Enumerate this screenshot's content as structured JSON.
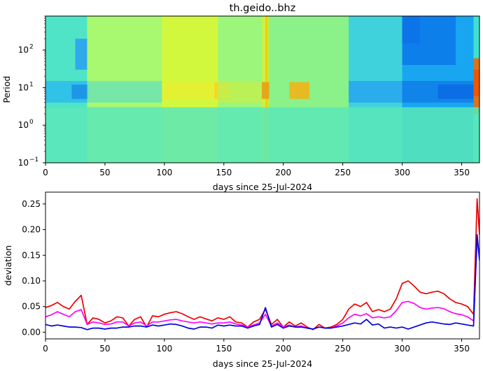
{
  "chart_data": [
    {
      "type": "heatmap",
      "title": "th.geido..bhz",
      "xlabel": "days since 25-Jul-2024",
      "ylabel": "Period",
      "xlim": [
        0,
        365
      ],
      "ylim": [
        0.1,
        800
      ],
      "yscale": "log",
      "colormap": "jet",
      "x_ticks": [
        "0",
        "50",
        "100",
        "150",
        "200",
        "250",
        "300",
        "350"
      ],
      "y_ticks": [
        {
          "value": 0.1,
          "base": "10",
          "exp": "−1"
        },
        {
          "value": 1,
          "base": "10",
          "exp": "0"
        },
        {
          "value": 10,
          "base": "10",
          "exp": "1"
        },
        {
          "value": 100,
          "base": "10",
          "exp": "2"
        }
      ],
      "background_colors": [
        {
          "x": [
            0,
            35
          ],
          "color": "#4fe4c8"
        },
        {
          "x": [
            35,
            98
          ],
          "color": "#a8f870"
        },
        {
          "x": [
            98,
            145
          ],
          "color": "#d2f83e"
        },
        {
          "x": [
            145,
            185
          ],
          "color": "#9cf67c"
        },
        {
          "x": [
            185,
            187
          ],
          "color": "#ff9a00"
        },
        {
          "x": [
            187,
            255
          ],
          "color": "#8af288"
        },
        {
          "x": [
            255,
            300
          ],
          "color": "#40d2dc"
        },
        {
          "x": [
            300,
            360
          ],
          "color": "#18a6f0"
        },
        {
          "x": [
            360,
            365
          ],
          "color": "#40e0d0"
        }
      ],
      "features": [
        {
          "x": [
            0,
            35
          ],
          "period": [
            4,
            15
          ],
          "color": "#2cbcec"
        },
        {
          "x": [
            22,
            36
          ],
          "period": [
            5,
            12
          ],
          "color": "#1a8ee8"
        },
        {
          "x": [
            25,
            35
          ],
          "period": [
            30,
            200
          ],
          "color": "#2a9ef2"
        },
        {
          "x": [
            35,
            98
          ],
          "period": [
            4,
            15
          ],
          "color": "#6ee4b0"
        },
        {
          "x": [
            98,
            145
          ],
          "period": [
            5,
            14
          ],
          "color": "#e8f030"
        },
        {
          "x": [
            142,
            155
          ],
          "period": [
            5,
            14
          ],
          "color": "#f8d420"
        },
        {
          "x": [
            145,
            185
          ],
          "period": [
            4,
            15
          ],
          "color": "#bff050"
        },
        {
          "x": [
            182,
            188
          ],
          "period": [
            5,
            14
          ],
          "color": "#e02000"
        },
        {
          "x": [
            182,
            188
          ],
          "period": [
            0.1,
            800
          ],
          "color": "#e8f020"
        },
        {
          "x": [
            205,
            222
          ],
          "period": [
            5,
            14
          ],
          "color": "#f8b010"
        },
        {
          "x": [
            255,
            300
          ],
          "period": [
            4,
            15
          ],
          "color": "#28a6ee"
        },
        {
          "x": [
            300,
            315
          ],
          "period": [
            150,
            800
          ],
          "color": "#0a50e0"
        },
        {
          "x": [
            300,
            345
          ],
          "period": [
            40,
            800
          ],
          "color": "#0c78ea"
        },
        {
          "x": [
            300,
            360
          ],
          "period": [
            4,
            15
          ],
          "color": "#107ee8"
        },
        {
          "x": [
            330,
            360
          ],
          "period": [
            5,
            12
          ],
          "color": "#0a6ae4"
        },
        {
          "x": [
            360,
            365
          ],
          "period": [
            6,
            30
          ],
          "color": "#c80000"
        },
        {
          "x": [
            360,
            365
          ],
          "period": [
            2,
            60
          ],
          "color": "#f86000"
        },
        {
          "x": [
            0,
            365
          ],
          "period": [
            0.1,
            3
          ],
          "color": "#5ae8b8"
        }
      ]
    },
    {
      "type": "line",
      "title": "",
      "xlabel": "days since 25-Jul-2024",
      "ylabel": "deviation",
      "xlim": [
        0,
        365
      ],
      "ylim": [
        -0.013,
        0.273
      ],
      "x_ticks": [
        "0",
        "50",
        "100",
        "150",
        "200",
        "250",
        "300",
        "350"
      ],
      "y_ticks": [
        "0.00",
        "0.05",
        "0.10",
        "0.15",
        "0.20",
        "0.25"
      ],
      "x": [
        0,
        5,
        10,
        15,
        20,
        25,
        30,
        35,
        40,
        45,
        50,
        55,
        60,
        65,
        70,
        75,
        80,
        85,
        90,
        95,
        100,
        105,
        110,
        115,
        120,
        125,
        130,
        135,
        140,
        145,
        150,
        155,
        160,
        165,
        170,
        175,
        180,
        185,
        190,
        195,
        200,
        205,
        210,
        215,
        220,
        225,
        230,
        235,
        240,
        245,
        250,
        255,
        260,
        265,
        270,
        275,
        280,
        285,
        290,
        295,
        300,
        305,
        310,
        315,
        320,
        325,
        330,
        335,
        340,
        345,
        350,
        355,
        360,
        363,
        365
      ],
      "series": [
        {
          "color": "#ee0000",
          "values": [
            0.048,
            0.052,
            0.058,
            0.05,
            0.045,
            0.06,
            0.072,
            0.015,
            0.028,
            0.025,
            0.018,
            0.022,
            0.03,
            0.028,
            0.012,
            0.025,
            0.03,
            0.01,
            0.032,
            0.03,
            0.035,
            0.038,
            0.04,
            0.036,
            0.03,
            0.025,
            0.03,
            0.026,
            0.022,
            0.028,
            0.025,
            0.03,
            0.02,
            0.018,
            0.01,
            0.02,
            0.025,
            0.045,
            0.015,
            0.025,
            0.01,
            0.02,
            0.012,
            0.018,
            0.01,
            0.005,
            0.015,
            0.008,
            0.01,
            0.015,
            0.025,
            0.045,
            0.055,
            0.05,
            0.058,
            0.04,
            0.044,
            0.04,
            0.045,
            0.065,
            0.095,
            0.1,
            0.09,
            0.078,
            0.075,
            0.078,
            0.08,
            0.075,
            0.065,
            0.058,
            0.055,
            0.05,
            0.035,
            0.26,
            0.19
          ]
        },
        {
          "color": "#ff00ff",
          "values": [
            0.03,
            0.034,
            0.04,
            0.035,
            0.03,
            0.04,
            0.044,
            0.015,
            0.02,
            0.018,
            0.015,
            0.016,
            0.02,
            0.02,
            0.012,
            0.018,
            0.02,
            0.012,
            0.02,
            0.02,
            0.022,
            0.024,
            0.025,
            0.022,
            0.02,
            0.018,
            0.02,
            0.018,
            0.016,
            0.018,
            0.018,
            0.02,
            0.016,
            0.014,
            0.01,
            0.014,
            0.018,
            0.035,
            0.012,
            0.018,
            0.01,
            0.014,
            0.01,
            0.012,
            0.008,
            0.006,
            0.01,
            0.008,
            0.008,
            0.012,
            0.018,
            0.028,
            0.035,
            0.032,
            0.036,
            0.028,
            0.03,
            0.028,
            0.03,
            0.042,
            0.058,
            0.06,
            0.056,
            0.048,
            0.045,
            0.047,
            0.048,
            0.046,
            0.04,
            0.036,
            0.034,
            0.03,
            0.022,
            0.18,
            0.15
          ]
        },
        {
          "color": "#0000dd",
          "values": [
            0.015,
            0.012,
            0.014,
            0.012,
            0.01,
            0.01,
            0.009,
            0.005,
            0.008,
            0.008,
            0.006,
            0.008,
            0.008,
            0.01,
            0.01,
            0.012,
            0.012,
            0.01,
            0.014,
            0.012,
            0.014,
            0.016,
            0.015,
            0.012,
            0.008,
            0.006,
            0.01,
            0.01,
            0.008,
            0.014,
            0.012,
            0.014,
            0.012,
            0.012,
            0.008,
            0.012,
            0.015,
            0.048,
            0.01,
            0.015,
            0.008,
            0.012,
            0.01,
            0.01,
            0.008,
            0.006,
            0.01,
            0.008,
            0.008,
            0.01,
            0.012,
            0.015,
            0.018,
            0.016,
            0.025,
            0.014,
            0.016,
            0.008,
            0.01,
            0.008,
            0.01,
            0.006,
            0.01,
            0.014,
            0.018,
            0.02,
            0.018,
            0.016,
            0.015,
            0.018,
            0.016,
            0.014,
            0.012,
            0.19,
            0.14
          ]
        }
      ]
    }
  ]
}
